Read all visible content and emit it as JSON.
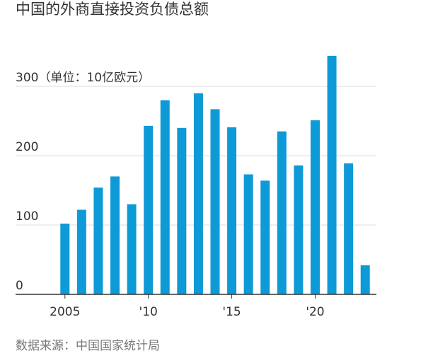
{
  "chart_data": {
    "type": "bar",
    "title": "中国的外商直接投资负债总额",
    "y_unit_label": "（单位：10亿欧元）",
    "source": "数据来源：中国国家统计局",
    "categories": [
      "2005",
      null,
      null,
      null,
      null,
      "'10",
      null,
      null,
      null,
      null,
      "'15",
      null,
      null,
      null,
      null,
      "'20",
      null,
      null,
      null
    ],
    "values": [
      102,
      122,
      154,
      170,
      130,
      243,
      280,
      240,
      290,
      267,
      241,
      173,
      164,
      235,
      186,
      251,
      344,
      189,
      42
    ],
    "color": "#0e9ad7",
    "ylim": [
      0,
      350
    ],
    "yticks": [
      0,
      100,
      200,
      300
    ],
    "grid": true
  }
}
